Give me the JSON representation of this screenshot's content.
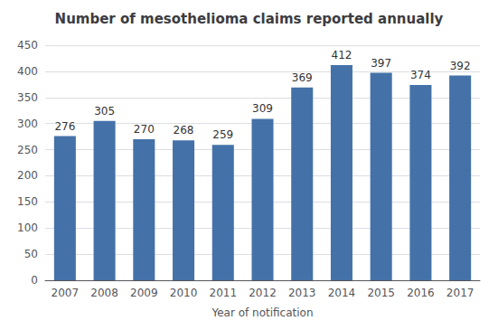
{
  "chart_data": {
    "type": "bar",
    "title": "Number of mesothelioma claims reported annually",
    "xlabel": "Year of notification",
    "categories": [
      "2007",
      "2008",
      "2009",
      "2010",
      "2011",
      "2012",
      "2013",
      "2014",
      "2015",
      "2016",
      "2017"
    ],
    "values": [
      276,
      305,
      270,
      268,
      259,
      309,
      369,
      412,
      397,
      374,
      392
    ],
    "color": "#4472a8",
    "ylim": [
      0,
      450
    ],
    "yticks": [
      0,
      50,
      100,
      150,
      200,
      250,
      300,
      350,
      400,
      450
    ],
    "grid": true,
    "data_labels": true
  }
}
